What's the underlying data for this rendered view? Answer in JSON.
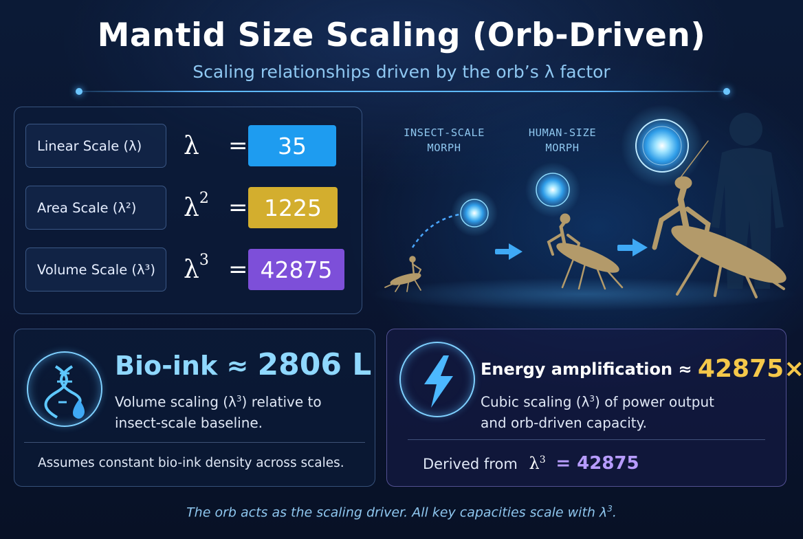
{
  "header": {
    "title": "Mantid Size Scaling (Orb-Driven)",
    "subtitle": "Scaling relationships driven by the orb’s λ factor"
  },
  "scales": [
    {
      "label": "Linear Scale (λ)",
      "symbol": "λ",
      "power": "",
      "equals": "=",
      "value": "35",
      "color": "#1e9cf0"
    },
    {
      "label": "Area Scale (λ²)",
      "symbol": "λ",
      "power": "2",
      "equals": "=",
      "value": "1225",
      "color": "#d3ae2e"
    },
    {
      "label": "Volume Scale (λ³)",
      "symbol": "λ",
      "power": "3",
      "equals": "=",
      "value": "42875",
      "color": "#7d4fd9"
    }
  ],
  "illustration": {
    "insect_label_1": "INSECT-SCALE",
    "insect_label_2": "MORPH",
    "human_label_1": "HUMAN-SIZE",
    "human_label_2": "MORPH",
    "orb_color": "#5ec8ff",
    "mantis_color": "#b39a6a"
  },
  "bio_card": {
    "title_prefix": "Bio-ink ≈",
    "title_value": "2806 L",
    "desc_1": "Volume scaling (λ",
    "desc_power": "3",
    "desc_2": ") relative to",
    "desc_line2": "insect-scale baseline.",
    "note": "Assumes constant bio-ink density across scales.",
    "icon": "dna-droplet-icon"
  },
  "energy_card": {
    "title_prefix": "Energy amplification ≈",
    "title_value": "42875×",
    "desc_1": "Cubic scaling (λ",
    "desc_power": "3",
    "desc_2": ") of power output",
    "desc_line2": "and orb-driven capacity.",
    "derived_label": "Derived from",
    "derived_symbol": "λ",
    "derived_power": "3",
    "derived_value": "= 42875",
    "icon": "lightning-icon"
  },
  "footer": {
    "text": "The orb acts as the scaling driver. All key capacities scale with λ",
    "power": "3",
    "end": "."
  }
}
